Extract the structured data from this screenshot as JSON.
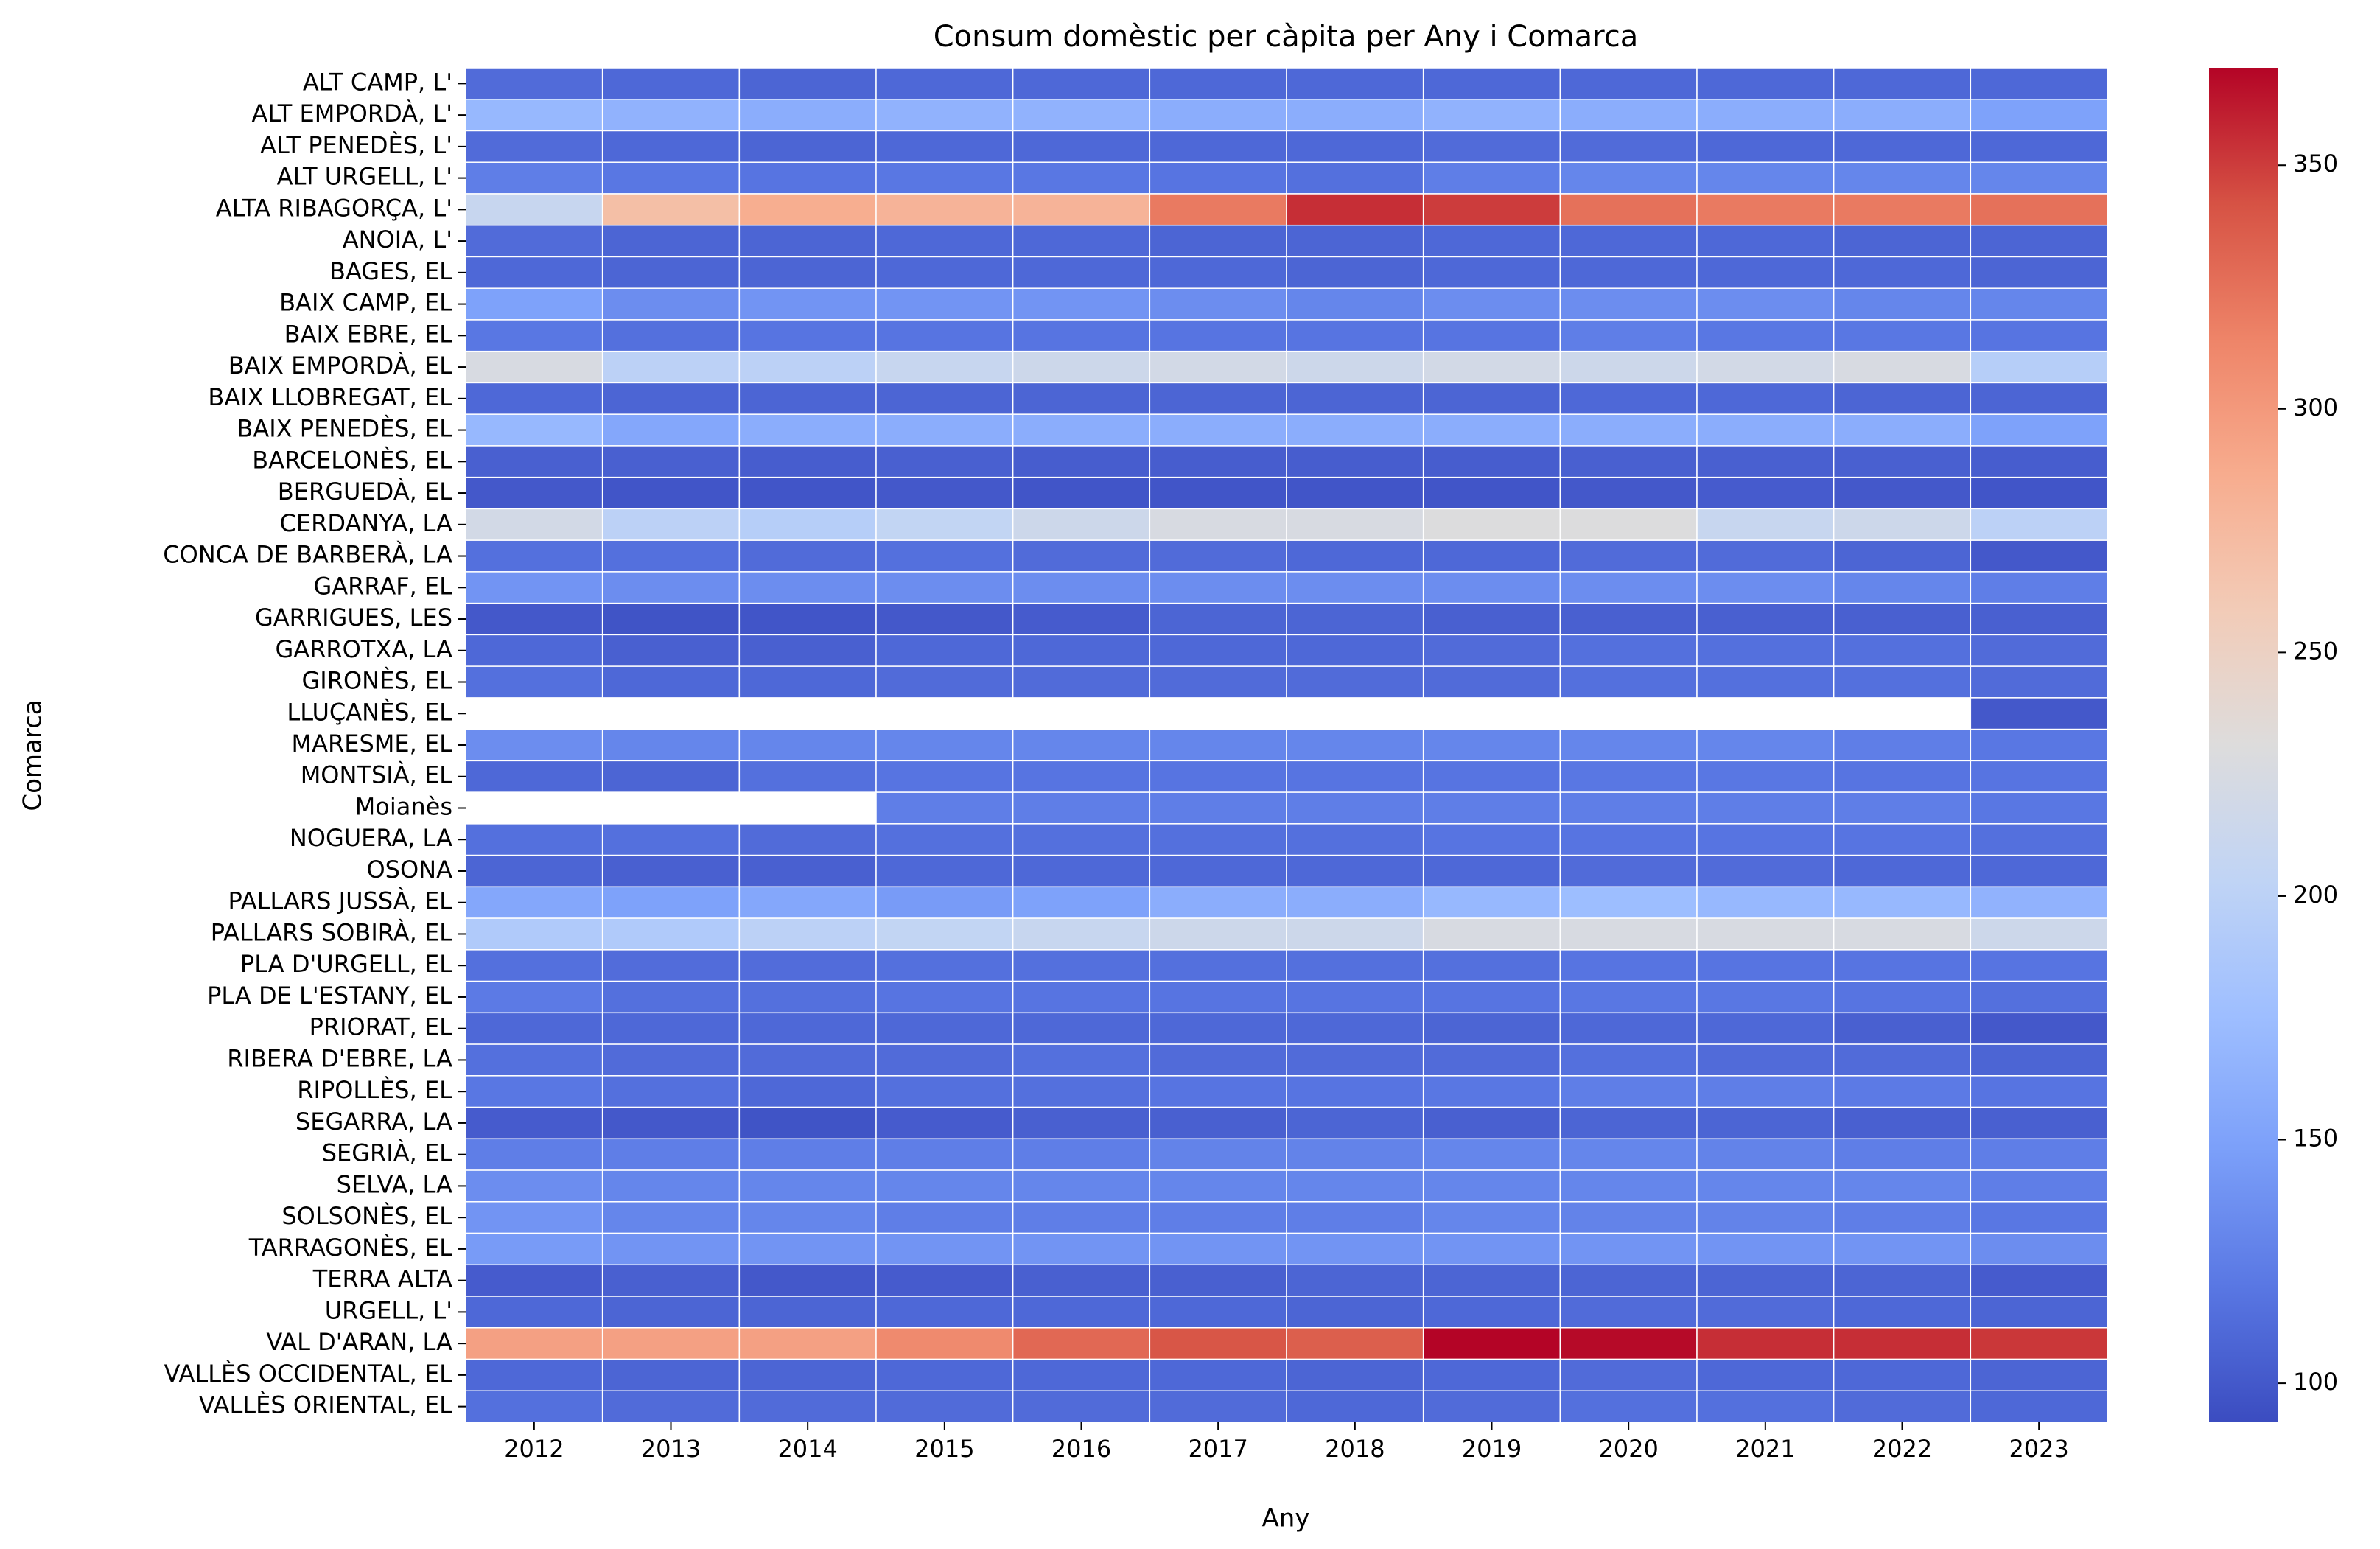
{
  "chart_data": {
    "type": "heatmap",
    "title": "Consum domèstic per càpita per Any i Comarca",
    "xlabel": "Any",
    "ylabel": "Comarca",
    "colormap": "coolwarm",
    "clim": [
      92,
      370
    ],
    "cticks": [
      100,
      150,
      200,
      250,
      300,
      350
    ],
    "x": [
      "2012",
      "2013",
      "2014",
      "2015",
      "2016",
      "2017",
      "2018",
      "2019",
      "2020",
      "2021",
      "2022",
      "2023"
    ],
    "y": [
      "ALT CAMP, L'",
      "ALT EMPORDÀ, L'",
      "ALT PENEDÈS, L'",
      "ALT URGELL, L'",
      "ALTA RIBAGORÇA, L'",
      "ANOIA, L'",
      "BAGES, EL",
      "BAIX CAMP, EL",
      "BAIX EBRE, EL",
      "BAIX EMPORDÀ, EL",
      "BAIX LLOBREGAT, EL",
      "BAIX PENEDÈS, EL",
      "BARCELONÈS, EL",
      "BERGUEDÀ, EL",
      "CERDANYA, LA",
      "CONCA DE BARBERÀ, LA",
      "GARRAF, EL",
      "GARRIGUES, LES",
      "GARROTXA, LA",
      "GIRONÈS, EL",
      "LLUÇANÈS, EL",
      "MARESME, EL",
      "MONTSIÀ, EL",
      "Moianès",
      "NOGUERA, LA",
      "OSONA",
      "PALLARS JUSSÀ, EL",
      "PALLARS SOBIRÀ, EL",
      "PLA D'URGELL, EL",
      "PLA DE L'ESTANY, EL",
      "PRIORAT, EL",
      "RIBERA D'EBRE, LA",
      "RIPOLLÈS, EL",
      "SEGARRA, LA",
      "SEGRIÀ, EL",
      "SELVA, LA",
      "SOLSONÈS, EL",
      "TARRAGONÈS, EL",
      "TERRA ALTA",
      "URGELL, L'",
      "VAL D'ARAN, LA",
      "VALLÈS OCCIDENTAL, EL",
      "VALLÈS ORIENTAL, EL"
    ],
    "values": [
      [
        112,
        110,
        108,
        110,
        110,
        110,
        110,
        110,
        110,
        110,
        110,
        110
      ],
      [
        170,
        165,
        160,
        165,
        165,
        160,
        160,
        165,
        160,
        160,
        160,
        150
      ],
      [
        112,
        110,
        108,
        110,
        110,
        110,
        110,
        112,
        112,
        110,
        110,
        110
      ],
      [
        125,
        120,
        118,
        120,
        120,
        118,
        115,
        125,
        130,
        130,
        130,
        130
      ],
      [
        210,
        270,
        285,
        280,
        280,
        320,
        355,
        350,
        325,
        320,
        320,
        325
      ],
      [
        112,
        108,
        108,
        110,
        110,
        108,
        108,
        110,
        110,
        110,
        108,
        108
      ],
      [
        110,
        108,
        108,
        110,
        110,
        110,
        108,
        110,
        110,
        110,
        110,
        108
      ],
      [
        150,
        135,
        140,
        140,
        140,
        135,
        130,
        135,
        135,
        135,
        130,
        130
      ],
      [
        120,
        115,
        118,
        118,
        118,
        118,
        118,
        118,
        125,
        120,
        120,
        118
      ],
      [
        225,
        200,
        200,
        210,
        215,
        220,
        215,
        220,
        215,
        220,
        225,
        195
      ],
      [
        110,
        108,
        108,
        108,
        108,
        108,
        108,
        108,
        110,
        110,
        108,
        108
      ],
      [
        170,
        155,
        160,
        160,
        160,
        160,
        160,
        160,
        160,
        160,
        160,
        150
      ],
      [
        105,
        105,
        103,
        105,
        103,
        103,
        103,
        103,
        105,
        105,
        105,
        103
      ],
      [
        100,
        98,
        98,
        100,
        98,
        98,
        98,
        98,
        100,
        102,
        100,
        98
      ],
      [
        220,
        200,
        195,
        205,
        215,
        225,
        225,
        230,
        230,
        210,
        215,
        200
      ],
      [
        115,
        115,
        112,
        115,
        112,
        112,
        110,
        110,
        112,
        112,
        108,
        100
      ],
      [
        140,
        135,
        135,
        135,
        135,
        135,
        135,
        135,
        135,
        135,
        130,
        125
      ],
      [
        100,
        97,
        98,
        100,
        102,
        108,
        108,
        105,
        105,
        105,
        105,
        105
      ],
      [
        110,
        105,
        105,
        110,
        110,
        110,
        110,
        112,
        115,
        115,
        115,
        112
      ],
      [
        115,
        110,
        110,
        112,
        112,
        112,
        112,
        112,
        115,
        115,
        115,
        112
      ],
      [
        null,
        null,
        null,
        null,
        null,
        null,
        null,
        null,
        null,
        null,
        null,
        100
      ],
      [
        135,
        130,
        130,
        130,
        130,
        130,
        130,
        130,
        130,
        130,
        125,
        120
      ],
      [
        110,
        108,
        115,
        118,
        118,
        118,
        118,
        118,
        120,
        120,
        118,
        118
      ],
      [
        null,
        null,
        null,
        125,
        125,
        125,
        125,
        125,
        125,
        125,
        125,
        120
      ],
      [
        115,
        115,
        112,
        115,
        115,
        115,
        115,
        118,
        118,
        118,
        118,
        115
      ],
      [
        108,
        105,
        105,
        110,
        110,
        110,
        110,
        110,
        112,
        112,
        110,
        110
      ],
      [
        155,
        150,
        155,
        145,
        150,
        160,
        160,
        170,
        175,
        170,
        170,
        165
      ],
      [
        190,
        190,
        200,
        205,
        210,
        215,
        215,
        225,
        225,
        225,
        225,
        215
      ],
      [
        115,
        113,
        113,
        115,
        115,
        115,
        115,
        115,
        118,
        118,
        118,
        118
      ],
      [
        122,
        115,
        115,
        118,
        118,
        118,
        118,
        118,
        120,
        120,
        118,
        115
      ],
      [
        110,
        110,
        110,
        110,
        110,
        110,
        110,
        108,
        110,
        110,
        105,
        100
      ],
      [
        115,
        112,
        112,
        112,
        115,
        112,
        112,
        112,
        115,
        112,
        112,
        108
      ],
      [
        120,
        115,
        110,
        115,
        115,
        118,
        118,
        120,
        125,
        125,
        122,
        118
      ],
      [
        102,
        100,
        97,
        102,
        105,
        105,
        108,
        105,
        108,
        108,
        105,
        105
      ],
      [
        125,
        125,
        125,
        125,
        125,
        128,
        128,
        130,
        130,
        128,
        125,
        125
      ],
      [
        135,
        130,
        130,
        130,
        130,
        130,
        130,
        130,
        130,
        130,
        130,
        125
      ],
      [
        140,
        130,
        130,
        125,
        125,
        125,
        125,
        130,
        128,
        128,
        125,
        120
      ],
      [
        145,
        140,
        140,
        140,
        140,
        140,
        140,
        140,
        140,
        140,
        140,
        135
      ],
      [
        102,
        105,
        100,
        102,
        105,
        105,
        108,
        108,
        108,
        108,
        108,
        102
      ],
      [
        110,
        108,
        108,
        110,
        110,
        110,
        108,
        110,
        112,
        112,
        110,
        108
      ],
      [
        295,
        295,
        295,
        310,
        330,
        340,
        335,
        370,
        368,
        355,
        355,
        352
      ],
      [
        110,
        108,
        108,
        110,
        110,
        110,
        108,
        110,
        112,
        110,
        110,
        108
      ],
      [
        115,
        112,
        112,
        112,
        112,
        112,
        110,
        112,
        115,
        115,
        112,
        110
      ]
    ]
  }
}
